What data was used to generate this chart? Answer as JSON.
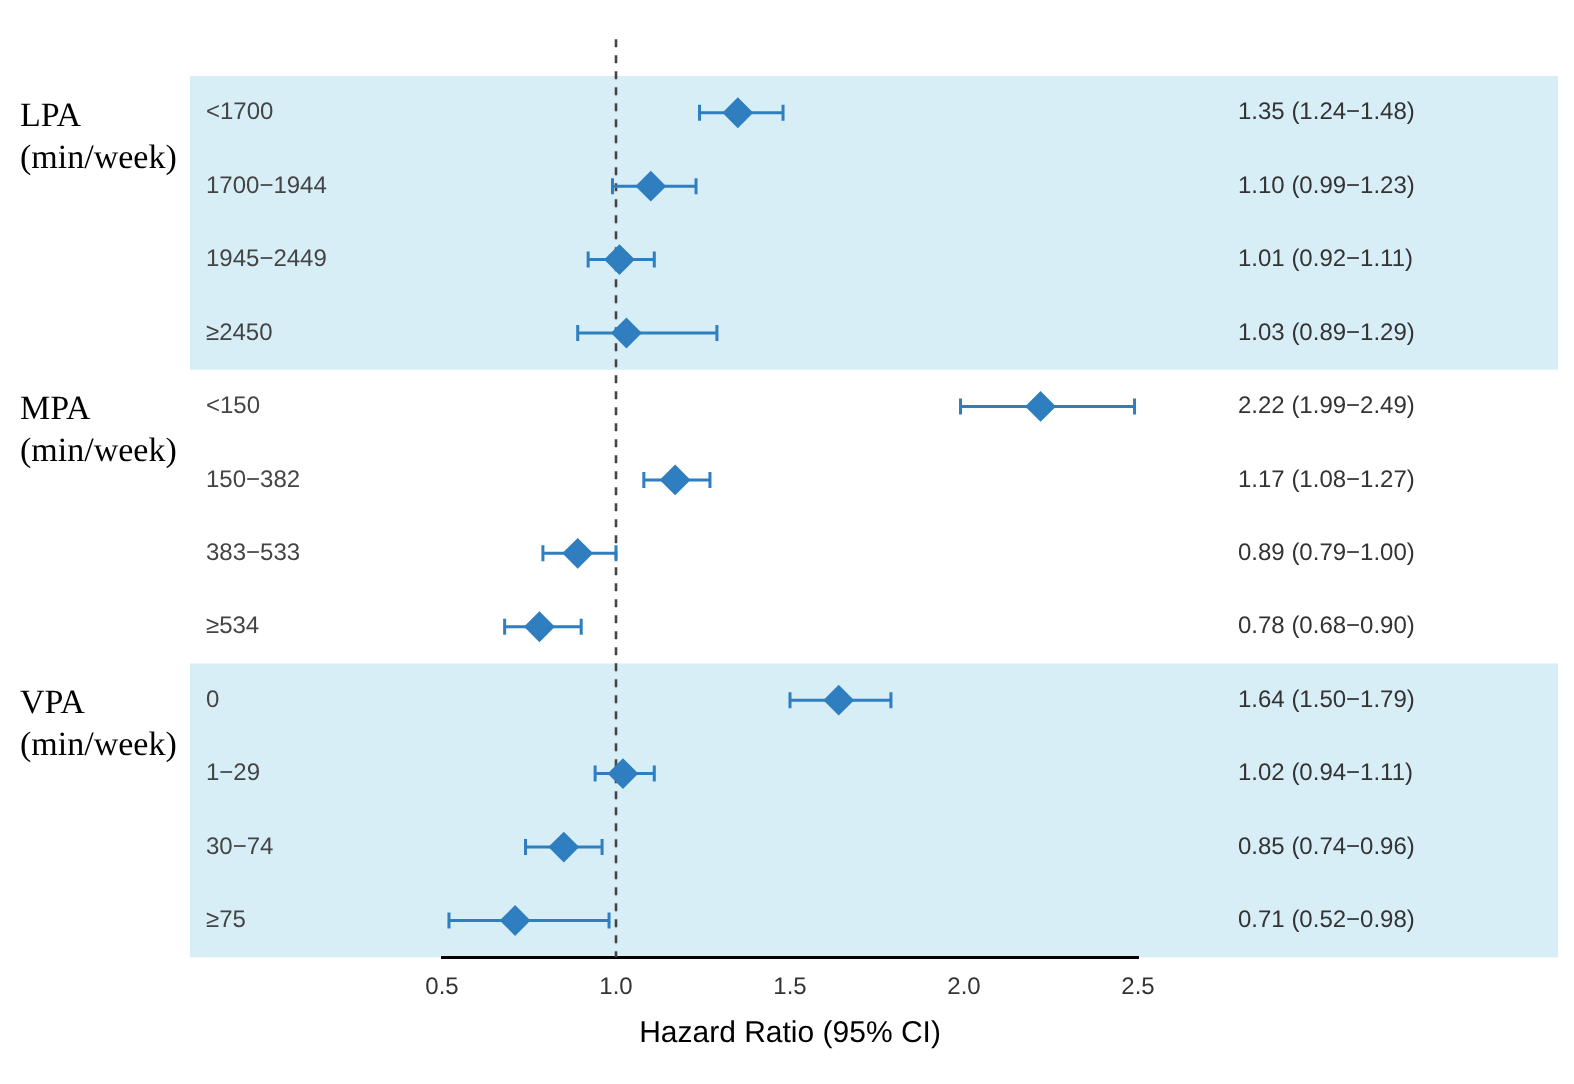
{
  "chart_data": {
    "type": "scatter",
    "orientation": "horizontal",
    "xlabel": "Hazard Ratio (95% CI)",
    "categories": [
      "<1700",
      "1700−1944",
      "1945−2449",
      "≥2450",
      "<150",
      "150−382",
      "383−533",
      "≥534",
      "0",
      "1−29",
      "30−74",
      "≥75"
    ],
    "values": [
      1.35,
      1.1,
      1.01,
      1.03,
      2.22,
      1.17,
      0.89,
      0.78,
      1.64,
      1.02,
      0.85,
      0.71
    ],
    "errors": [
      [
        1.24,
        1.48
      ],
      [
        0.99,
        1.23
      ],
      [
        0.92,
        1.11
      ],
      [
        0.89,
        1.29
      ],
      [
        1.99,
        2.49
      ],
      [
        1.08,
        1.27
      ],
      [
        0.79,
        1.0
      ],
      [
        0.68,
        0.9
      ],
      [
        1.5,
        1.79
      ],
      [
        0.94,
        1.11
      ],
      [
        0.74,
        0.96
      ],
      [
        0.52,
        0.98
      ]
    ],
    "value_labels": [
      "1.35 (1.24−1.48)",
      "1.10 (0.99−1.23)",
      "1.01 (0.92−1.11)",
      "1.03 (0.89−1.29)",
      "2.22 (1.99−2.49)",
      "1.17 (1.08−1.27)",
      "0.89 (0.79−1.00)",
      "0.78 (0.68−0.90)",
      "1.64 (1.50−1.79)",
      "1.02 (0.94−1.11)",
      "0.85 (0.74−0.96)",
      "0.71 (0.52−0.98)"
    ],
    "color": "#2f7ebf",
    "marker": "diamond",
    "xlim": [
      0.5,
      2.5
    ],
    "xticks": [
      {
        "value": 0.5,
        "label": "0.5"
      },
      {
        "value": 1,
        "label": "1.0"
      },
      {
        "value": 1.5,
        "label": "1.5"
      },
      {
        "value": 2,
        "label": "2.0"
      },
      {
        "value": 2.5,
        "label": "2.5"
      }
    ],
    "grid": false,
    "legend": false,
    "ref_lines": [
      {
        "axis": "x",
        "value": 1,
        "line_style": "dashed",
        "color": "#444444"
      }
    ],
    "bands": [
      {
        "axis": "y",
        "from": "<1700",
        "to": "≥2450",
        "color": "#d8eef7"
      },
      {
        "axis": "y",
        "from": "0",
        "to": "≥75",
        "color": "#d8eef7"
      }
    ],
    "annotations": [
      "LPA (min/week)",
      "MPA (min/week)",
      "VPA (min/week)"
    ]
  }
}
